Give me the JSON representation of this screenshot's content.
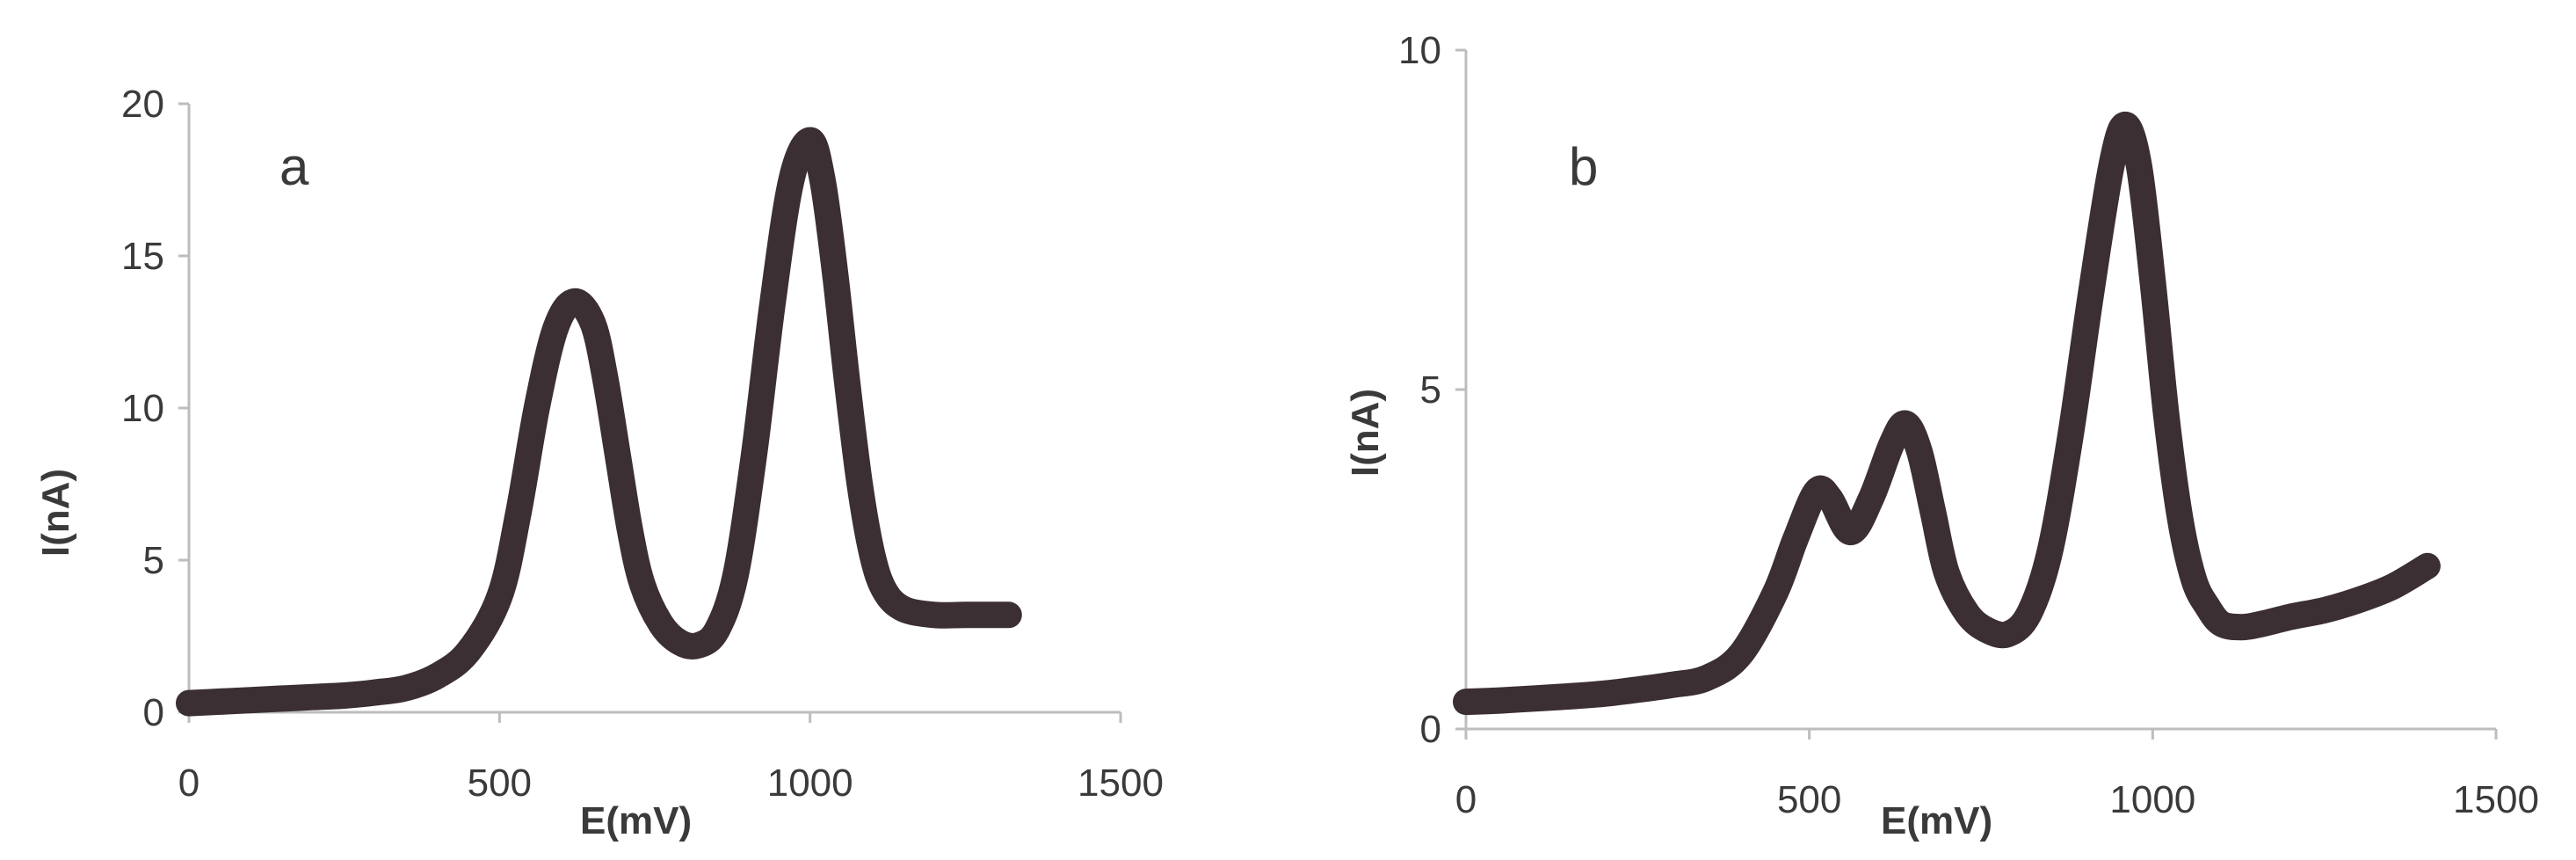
{
  "chart_data": [
    {
      "type": "line",
      "panel_label": "a",
      "xlabel": "E(mV)",
      "ylabel": "I(nA)",
      "xlim": [
        0,
        1500
      ],
      "ylim": [
        0,
        20
      ],
      "xticks": [
        "0",
        "500",
        "1000",
        "1500"
      ],
      "yticks": [
        "0",
        "5",
        "10",
        "15",
        "20"
      ],
      "grid": false,
      "legend": "none",
      "line_color": "#3b2f33",
      "series": [
        {
          "x": [
            0,
            50,
            100,
            150,
            200,
            250,
            300,
            350,
            400,
            450,
            500,
            530,
            560,
            590,
            620,
            650,
            670,
            690,
            710,
            730,
            760,
            790,
            820,
            850,
            880,
            910,
            940,
            970,
            1000,
            1020,
            1040,
            1060,
            1080,
            1100,
            1120,
            1150,
            1200,
            1250,
            1320
          ],
          "y": [
            0.3,
            0.35,
            0.4,
            0.45,
            0.5,
            0.55,
            0.65,
            0.8,
            1.2,
            2.0,
            3.8,
            6.5,
            10.0,
            12.6,
            13.5,
            12.8,
            11.0,
            8.5,
            6.0,
            4.2,
            2.9,
            2.3,
            2.2,
            2.7,
            4.5,
            8.5,
            13.5,
            17.5,
            18.8,
            17.5,
            14.5,
            10.8,
            7.5,
            5.2,
            4.0,
            3.4,
            3.2,
            3.2,
            3.2
          ]
        }
      ]
    },
    {
      "type": "line",
      "panel_label": "b",
      "xlabel": "E(mV)",
      "ylabel": "I(nA)",
      "xlim": [
        0,
        1500
      ],
      "ylim": [
        0,
        10
      ],
      "xticks": [
        "0",
        "500",
        "1000",
        "1500"
      ],
      "yticks": [
        "0",
        "5",
        "10"
      ],
      "grid": false,
      "legend": "none",
      "line_color": "#3b2f33",
      "series": [
        {
          "x": [
            0,
            50,
            100,
            150,
            200,
            250,
            300,
            350,
            400,
            450,
            480,
            510,
            530,
            560,
            590,
            620,
            640,
            660,
            680,
            700,
            730,
            760,
            790,
            820,
            850,
            880,
            910,
            940,
            960,
            980,
            1000,
            1020,
            1040,
            1060,
            1080,
            1100,
            1130,
            1160,
            1200,
            1250,
            1300,
            1350,
            1400
          ],
          "y": [
            0.4,
            0.42,
            0.45,
            0.48,
            0.52,
            0.58,
            0.65,
            0.75,
            1.1,
            2.0,
            2.8,
            3.5,
            3.4,
            2.9,
            3.4,
            4.2,
            4.5,
            4.1,
            3.2,
            2.3,
            1.7,
            1.45,
            1.4,
            1.7,
            2.6,
            4.3,
            6.4,
            8.3,
            8.9,
            8.3,
            6.6,
            4.6,
            3.1,
            2.2,
            1.8,
            1.55,
            1.5,
            1.55,
            1.65,
            1.75,
            1.9,
            2.1,
            2.4
          ]
        }
      ]
    }
  ]
}
